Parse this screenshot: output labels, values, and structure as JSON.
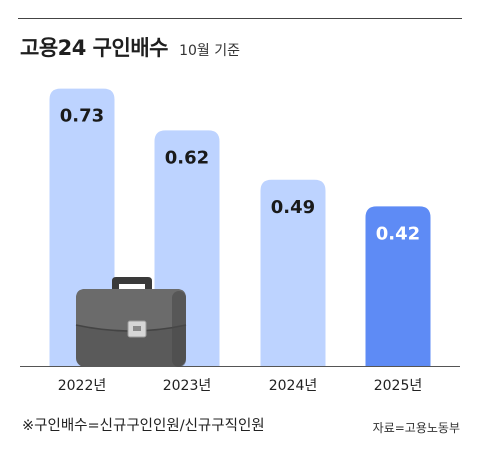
{
  "title": "고용24 구인배수",
  "subtitle": "10월 기준",
  "footnote": "※구인배수=신규구인인원/신규구직인원",
  "source": "자료=고용노동부",
  "colors": {
    "bar_light": "#bdd3ff",
    "bar_highlight": "#5e8bf5",
    "value_text_dark": "#1a1a1a",
    "value_text_light": "#ffffff",
    "baseline": "#555555"
  },
  "decoration": {
    "icon": "briefcase-icon"
  },
  "chart_data": {
    "type": "bar",
    "categories": [
      "2022년",
      "2023년",
      "2024년",
      "2025년"
    ],
    "values": [
      0.73,
      0.62,
      0.49,
      0.42
    ],
    "data_labels": [
      "0.73",
      "0.62",
      "0.49",
      "0.42"
    ],
    "highlight_index": 3,
    "title": "고용24 구인배수",
    "xlabel": "",
    "ylabel": "",
    "ylim": [
      0,
      0.8
    ],
    "grid": false,
    "legend": "none"
  }
}
